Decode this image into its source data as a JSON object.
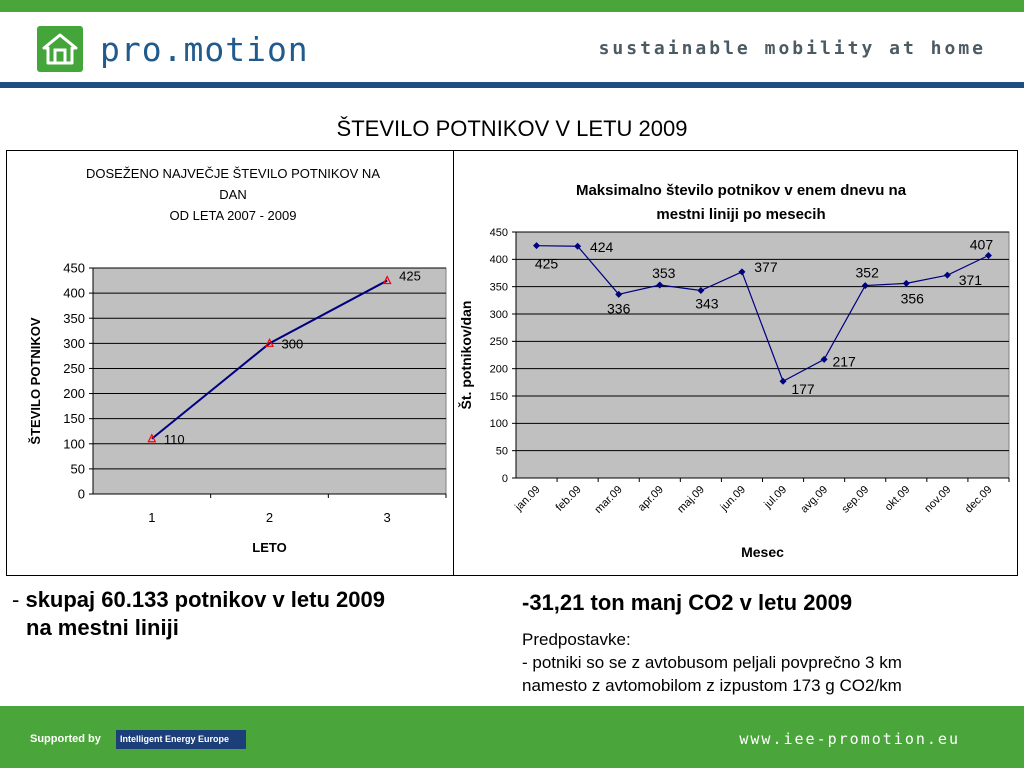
{
  "header": {
    "brand": "pro.motion",
    "tagline": "sustainable mobility at home",
    "accent_green": "#4aa63a",
    "accent_blue": "#1f4f80"
  },
  "slide_title": "ŠTEVILO POTNIKOV V LETU 2009",
  "chart_data": [
    {
      "type": "line",
      "title_lines": [
        "DOSEŽENO NAJVEČJE ŠTEVILO POTNIKOV NA",
        "DAN",
        "OD LETA 2007 - 2009"
      ],
      "xlabel": "LETO",
      "ylabel": "ŠTEVILO POTNIKOV",
      "categories": [
        "1",
        "2",
        "3"
      ],
      "series": [
        {
          "values": [
            110,
            300,
            425
          ]
        }
      ],
      "data_labels": [
        "110",
        "300",
        "425"
      ],
      "ylim": [
        0,
        450
      ],
      "yticks": [
        0,
        50,
        100,
        150,
        200,
        250,
        300,
        350,
        400,
        450
      ],
      "grid": true,
      "legend": "none",
      "plot_color": "#c0c0c0",
      "line_color": "#000080",
      "marker_color": "#ff0000"
    },
    {
      "type": "line",
      "title_lines": [
        "Maksimalno število potnikov v enem dnevu na",
        "mestni liniji po mesecih"
      ],
      "xlabel": "Mesec",
      "ylabel": "Št. potnikov/dan",
      "categories": [
        "jan.09",
        "feb.09",
        "mar.09",
        "apr.09",
        "maj.09",
        "jun.09",
        "jul.09",
        "avg.09",
        "sep.09",
        "okt.09",
        "nov.09",
        "dec.09"
      ],
      "series": [
        {
          "values": [
            425,
            424,
            336,
            353,
            343,
            377,
            177,
            217,
            352,
            356,
            371,
            407
          ]
        }
      ],
      "data_labels": [
        "425",
        "424",
        "336",
        "353",
        "343",
        "377",
        "177",
        "217",
        "352",
        "356",
        "371",
        "407"
      ],
      "ylim": [
        0,
        450
      ],
      "yticks": [
        0,
        50,
        100,
        150,
        200,
        250,
        300,
        350,
        400,
        450
      ],
      "grid": true,
      "legend": "none",
      "plot_color": "#c0c0c0",
      "line_color": "#000080",
      "marker_color": "#000080"
    }
  ],
  "left_bullet": {
    "dash": "- ",
    "line1": "skupaj 60.133  potnikov v letu 2009",
    "line2": "na mestni liniji"
  },
  "right_block": {
    "heading_dash": "-",
    "heading": "31,21 ton manj CO2 v letu 2009",
    "line1": "Predpostavke:",
    "line2": "- potniki so se z avtobusom peljali povprečno 3 km",
    "line3": "namesto z avtomobilom z izpustom 173 g CO2/km"
  },
  "footer": {
    "supported_by": "Supported by",
    "iee_logo": "Intelligent Energy Europe",
    "website": "www.iee-promotion.eu"
  }
}
